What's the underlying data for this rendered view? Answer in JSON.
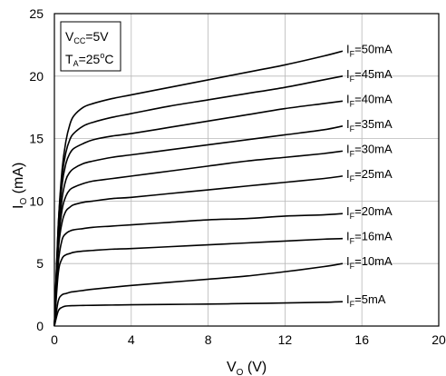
{
  "chart_data": {
    "type": "line",
    "xlabel_main": "V",
    "xlabel_sub": "O",
    "xlabel_unit": " (V)",
    "ylabel_main": "I",
    "ylabel_sub": "O",
    "ylabel_unit": " (mA)",
    "xlim": [
      0,
      20
    ],
    "ylim": [
      0,
      25
    ],
    "xticks": [
      "0",
      "4",
      "8",
      "12",
      "16",
      "20"
    ],
    "yticks": [
      "0",
      "5",
      "10",
      "15",
      "20",
      "25"
    ],
    "grid": true,
    "conditions": {
      "line1_main": "V",
      "line1_sub": "CC",
      "line1_rest": "=5V",
      "line2_main": "T",
      "line2_sub": "A",
      "line2_rest": "=25",
      "line2_sup": "o",
      "line2_end": "C"
    },
    "series": [
      {
        "name_main": "I",
        "name_sub": "F",
        "name_rest": "=50mA",
        "x": [
          0,
          0.2,
          0.4,
          0.6,
          0.8,
          1,
          1.5,
          2,
          3,
          4,
          6,
          8,
          10,
          12,
          14,
          15
        ],
        "y": [
          0,
          8,
          12.5,
          14.8,
          16.1,
          16.8,
          17.5,
          17.8,
          18.2,
          18.5,
          19.1,
          19.7,
          20.3,
          20.9,
          21.6,
          22
        ]
      },
      {
        "name_main": "I",
        "name_sub": "F",
        "name_rest": "=45mA",
        "x": [
          0,
          0.2,
          0.4,
          0.6,
          0.8,
          1,
          1.5,
          2,
          3,
          4,
          6,
          8,
          10,
          12,
          14,
          15
        ],
        "y": [
          0,
          8,
          12,
          13.9,
          14.9,
          15.4,
          16,
          16.3,
          16.7,
          17,
          17.6,
          18.1,
          18.6,
          19.1,
          19.7,
          20
        ]
      },
      {
        "name_main": "I",
        "name_sub": "F",
        "name_rest": "=40mA",
        "x": [
          0,
          0.2,
          0.4,
          0.6,
          0.8,
          1,
          1.5,
          2,
          3,
          4,
          6,
          8,
          10,
          12,
          14,
          15
        ],
        "y": [
          0,
          7.5,
          11.3,
          13,
          13.8,
          14.2,
          14.6,
          14.9,
          15.2,
          15.4,
          15.9,
          16.4,
          16.9,
          17.4,
          17.8,
          18
        ]
      },
      {
        "name_main": "I",
        "name_sub": "F",
        "name_rest": "=35mA",
        "x": [
          0,
          0.2,
          0.4,
          0.6,
          0.8,
          1,
          1.5,
          2,
          3,
          4,
          6,
          8,
          10,
          12,
          14,
          15
        ],
        "y": [
          0,
          7,
          10.2,
          11.7,
          12.3,
          12.6,
          13,
          13.2,
          13.5,
          13.7,
          14.1,
          14.5,
          14.9,
          15.3,
          15.7,
          16
        ]
      },
      {
        "name_main": "I",
        "name_sub": "F",
        "name_rest": "=30mA",
        "x": [
          0,
          0.2,
          0.4,
          0.6,
          0.8,
          1,
          1.5,
          2,
          3,
          4,
          6,
          8,
          10,
          12,
          14,
          15
        ],
        "y": [
          0,
          6.5,
          9.3,
          10.4,
          10.9,
          11.1,
          11.4,
          11.6,
          11.8,
          12,
          12.4,
          12.8,
          13.2,
          13.5,
          13.8,
          14
        ]
      },
      {
        "name_main": "I",
        "name_sub": "F",
        "name_rest": "=25mA",
        "x": [
          0,
          0.2,
          0.4,
          0.6,
          0.8,
          1,
          1.5,
          2,
          3,
          4,
          6,
          8,
          10,
          12,
          14,
          15
        ],
        "y": [
          0,
          6,
          8.3,
          9.2,
          9.5,
          9.7,
          9.9,
          10,
          10.2,
          10.3,
          10.6,
          10.9,
          11.2,
          11.5,
          11.8,
          12
        ]
      },
      {
        "name_main": "I",
        "name_sub": "F",
        "name_rest": "=20mA",
        "x": [
          0,
          0.2,
          0.4,
          0.6,
          0.8,
          1,
          1.5,
          2,
          3,
          4,
          6,
          8,
          10,
          12,
          14,
          15
        ],
        "y": [
          0,
          5,
          6.9,
          7.4,
          7.6,
          7.7,
          7.8,
          7.9,
          8,
          8.1,
          8.3,
          8.5,
          8.6,
          8.8,
          8.9,
          9
        ]
      },
      {
        "name_main": "I",
        "name_sub": "F",
        "name_rest": "=16mA",
        "x": [
          0,
          0.2,
          0.4,
          0.6,
          0.8,
          1,
          1.5,
          2,
          3,
          4,
          6,
          8,
          10,
          12,
          14,
          15
        ],
        "y": [
          0,
          4.2,
          5.4,
          5.7,
          5.8,
          5.9,
          6,
          6.05,
          6.15,
          6.2,
          6.35,
          6.5,
          6.65,
          6.8,
          6.95,
          7
        ]
      },
      {
        "name_main": "I",
        "name_sub": "F",
        "name_rest": "=10mA",
        "x": [
          0,
          0.2,
          0.4,
          0.6,
          0.8,
          1,
          1.5,
          2,
          3,
          4,
          6,
          8,
          10,
          12,
          14,
          15
        ],
        "y": [
          0,
          2,
          2.5,
          2.6,
          2.7,
          2.75,
          2.85,
          2.95,
          3.1,
          3.25,
          3.5,
          3.75,
          4,
          4.35,
          4.75,
          5
        ]
      },
      {
        "name_main": "I",
        "name_sub": "F",
        "name_rest": "=5mA",
        "x": [
          0,
          0.2,
          0.4,
          0.6,
          0.8,
          1,
          1.5,
          2,
          3,
          4,
          6,
          8,
          10,
          12,
          14,
          15
        ],
        "y": [
          0,
          1.2,
          1.5,
          1.6,
          1.62,
          1.63,
          1.65,
          1.66,
          1.68,
          1.7,
          1.73,
          1.76,
          1.8,
          1.85,
          1.9,
          1.95
        ]
      }
    ]
  }
}
